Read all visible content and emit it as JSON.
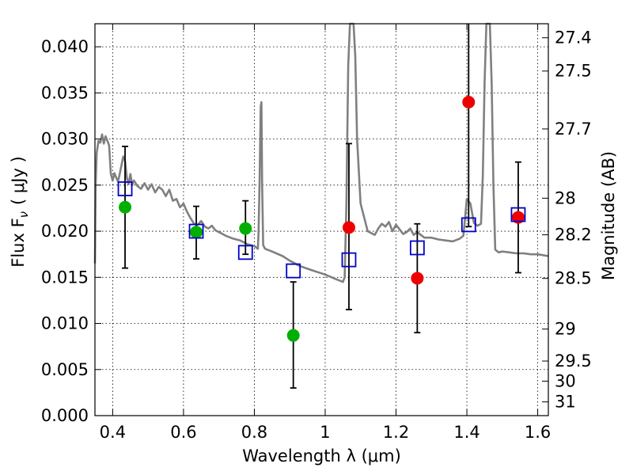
{
  "chart_data": {
    "type": "scatter",
    "xlabel": "Wavelength  λ (μm)",
    "ylabel_left": "Flux  F",
    "ylabel_left_sub": "ν",
    "ylabel_left_unit": "( μJy )",
    "ylabel_right": "Magnitude (AB)",
    "xlim": [
      0.35,
      1.63
    ],
    "ylim": [
      0.0,
      0.0425
    ],
    "grid": true,
    "x_ticks": [
      {
        "value": 0.4,
        "label": "0.4"
      },
      {
        "value": 0.6,
        "label": "0.6"
      },
      {
        "value": 0.8,
        "label": "0.8"
      },
      {
        "value": 1.0,
        "label": "1"
      },
      {
        "value": 1.2,
        "label": "1.2"
      },
      {
        "value": 1.4,
        "label": "1.4"
      },
      {
        "value": 1.6,
        "label": "1.6"
      }
    ],
    "y_ticks": [
      {
        "value": 0.0,
        "label": "0.000"
      },
      {
        "value": 0.005,
        "label": "0.005"
      },
      {
        "value": 0.01,
        "label": "0.010"
      },
      {
        "value": 0.015,
        "label": "0.015"
      },
      {
        "value": 0.02,
        "label": "0.020"
      },
      {
        "value": 0.025,
        "label": "0.025"
      },
      {
        "value": 0.03,
        "label": "0.030"
      },
      {
        "value": 0.035,
        "label": "0.035"
      },
      {
        "value": 0.04,
        "label": "0.040"
      }
    ],
    "right_ticks": [
      {
        "label": "27.4",
        "flux": 0.04098
      },
      {
        "label": "27.5",
        "flux": 0.03737
      },
      {
        "label": "27.7",
        "flux": 0.03109
      },
      {
        "label": "28",
        "flux": 0.02358
      },
      {
        "label": "28.2",
        "flux": 0.01961
      },
      {
        "label": "28.5",
        "flux": 0.01488
      },
      {
        "label": "29",
        "flux": 0.00939
      },
      {
        "label": "29.5",
        "flux": 0.00592
      },
      {
        "label": "30",
        "flux": 0.00374
      },
      {
        "label": "31",
        "flux": 0.00149
      }
    ],
    "sed_model": {
      "color": "#808080",
      "points": [
        [
          0.35,
          0.0165
        ],
        [
          0.352,
          0.025
        ],
        [
          0.355,
          0.0285
        ],
        [
          0.36,
          0.0298
        ],
        [
          0.365,
          0.0296
        ],
        [
          0.37,
          0.0305
        ],
        [
          0.375,
          0.0295
        ],
        [
          0.38,
          0.0303
        ],
        [
          0.385,
          0.0298
        ],
        [
          0.39,
          0.0293
        ],
        [
          0.395,
          0.0262
        ],
        [
          0.4,
          0.0255
        ],
        [
          0.405,
          0.0263
        ],
        [
          0.41,
          0.0258
        ],
        [
          0.415,
          0.0254
        ],
        [
          0.42,
          0.0262
        ],
        [
          0.425,
          0.0272
        ],
        [
          0.43,
          0.0281
        ],
        [
          0.435,
          0.0276
        ],
        [
          0.44,
          0.0258
        ],
        [
          0.445,
          0.0251
        ],
        [
          0.45,
          0.0262
        ],
        [
          0.455,
          0.025
        ],
        [
          0.46,
          0.0255
        ],
        [
          0.47,
          0.0249
        ],
        [
          0.48,
          0.0246
        ],
        [
          0.49,
          0.0252
        ],
        [
          0.5,
          0.0245
        ],
        [
          0.51,
          0.0251
        ],
        [
          0.52,
          0.0242
        ],
        [
          0.53,
          0.0248
        ],
        [
          0.54,
          0.0245
        ],
        [
          0.55,
          0.0238
        ],
        [
          0.56,
          0.0245
        ],
        [
          0.57,
          0.0233
        ],
        [
          0.58,
          0.0235
        ],
        [
          0.59,
          0.0226
        ],
        [
          0.6,
          0.023
        ],
        [
          0.61,
          0.0221
        ],
        [
          0.62,
          0.0214
        ],
        [
          0.63,
          0.0208
        ],
        [
          0.64,
          0.0207
        ],
        [
          0.65,
          0.0211
        ],
        [
          0.66,
          0.0205
        ],
        [
          0.67,
          0.0203
        ],
        [
          0.68,
          0.0206
        ],
        [
          0.69,
          0.0201
        ],
        [
          0.7,
          0.0199
        ],
        [
          0.72,
          0.0195
        ],
        [
          0.74,
          0.0192
        ],
        [
          0.76,
          0.019
        ],
        [
          0.78,
          0.0186
        ],
        [
          0.8,
          0.0184
        ],
        [
          0.81,
          0.0181
        ],
        [
          0.812,
          0.02
        ],
        [
          0.815,
          0.026
        ],
        [
          0.818,
          0.0335
        ],
        [
          0.82,
          0.034
        ],
        [
          0.822,
          0.025
        ],
        [
          0.825,
          0.0185
        ],
        [
          0.83,
          0.0181
        ],
        [
          0.85,
          0.0178
        ],
        [
          0.88,
          0.0173
        ],
        [
          0.9,
          0.0168
        ],
        [
          0.93,
          0.0162
        ],
        [
          0.96,
          0.0158
        ],
        [
          1.0,
          0.0153
        ],
        [
          1.03,
          0.0148
        ],
        [
          1.05,
          0.0145
        ],
        [
          1.055,
          0.015
        ],
        [
          1.06,
          0.023
        ],
        [
          1.065,
          0.038
        ],
        [
          1.07,
          0.0425
        ],
        [
          1.075,
          0.0425
        ],
        [
          1.08,
          0.0425
        ],
        [
          1.085,
          0.039
        ],
        [
          1.09,
          0.03
        ],
        [
          1.1,
          0.023
        ],
        [
          1.12,
          0.02
        ],
        [
          1.14,
          0.0196
        ],
        [
          1.15,
          0.0203
        ],
        [
          1.16,
          0.0208
        ],
        [
          1.17,
          0.0205
        ],
        [
          1.18,
          0.021
        ],
        [
          1.19,
          0.02
        ],
        [
          1.2,
          0.0207
        ],
        [
          1.21,
          0.0202
        ],
        [
          1.22,
          0.0197
        ],
        [
          1.23,
          0.0199
        ],
        [
          1.24,
          0.0203
        ],
        [
          1.25,
          0.0196
        ],
        [
          1.26,
          0.0199
        ],
        [
          1.27,
          0.0196
        ],
        [
          1.28,
          0.0193
        ],
        [
          1.3,
          0.0193
        ],
        [
          1.32,
          0.0191
        ],
        [
          1.34,
          0.019
        ],
        [
          1.36,
          0.0189
        ],
        [
          1.38,
          0.0192
        ],
        [
          1.39,
          0.0195
        ],
        [
          1.395,
          0.0215
        ],
        [
          1.4,
          0.0235
        ],
        [
          1.41,
          0.023
        ],
        [
          1.42,
          0.0209
        ],
        [
          1.43,
          0.0206
        ],
        [
          1.44,
          0.0208
        ],
        [
          1.445,
          0.026
        ],
        [
          1.45,
          0.036
        ],
        [
          1.455,
          0.0425
        ],
        [
          1.465,
          0.0425
        ],
        [
          1.47,
          0.036
        ],
        [
          1.475,
          0.025
        ],
        [
          1.48,
          0.018
        ],
        [
          1.49,
          0.0177
        ],
        [
          1.5,
          0.0178
        ],
        [
          1.52,
          0.0177
        ],
        [
          1.54,
          0.0176
        ],
        [
          1.56,
          0.0176
        ],
        [
          1.58,
          0.0175
        ],
        [
          1.6,
          0.0175
        ],
        [
          1.63,
          0.0173
        ]
      ]
    },
    "model_points": {
      "color": "#0000cc",
      "x": [
        0.435,
        0.636,
        0.775,
        0.91,
        1.067,
        1.26,
        1.405,
        1.545
      ],
      "y": [
        0.0246,
        0.02,
        0.0177,
        0.0157,
        0.0169,
        0.0182,
        0.0207,
        0.0218
      ]
    },
    "observed_green": {
      "color": "#00b000",
      "x": [
        0.435,
        0.636,
        0.775,
        0.91
      ],
      "y": [
        0.0226,
        0.0199,
        0.0203,
        0.0087
      ],
      "yerr_low": [
        0.016,
        0.017,
        0.0175,
        0.003
      ],
      "yerr_high": [
        0.0292,
        0.0227,
        0.0233,
        0.0145
      ]
    },
    "observed_red": {
      "color": "#ee0000",
      "x": [
        1.067,
        1.26,
        1.405,
        1.545
      ],
      "y": [
        0.0204,
        0.0149,
        0.034,
        0.0215
      ],
      "yerr_low": [
        0.0115,
        0.009,
        0.0205,
        0.0155
      ],
      "yerr_high": [
        0.0295,
        0.0208,
        0.0425,
        0.0275
      ]
    }
  }
}
